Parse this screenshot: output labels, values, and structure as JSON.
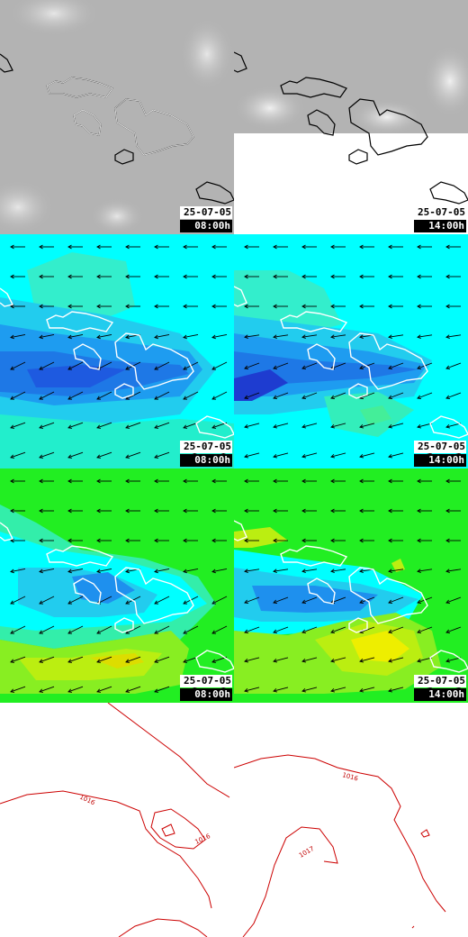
{
  "panels": [
    {
      "row": "cloud",
      "date": "25-07-05",
      "time": "08:00h"
    },
    {
      "row": "cloud",
      "date": "25-07-05",
      "time": "14:00h"
    },
    {
      "row": "wind",
      "date": "25-07-05",
      "time": "08:00h"
    },
    {
      "row": "wind",
      "date": "25-07-05",
      "time": "14:00h"
    },
    {
      "row": "gust",
      "date": "25-07-05",
      "time": "08:00h"
    },
    {
      "row": "gust",
      "date": "25-07-05",
      "time": "14:00h"
    }
  ],
  "pressure": {
    "left_labels": [
      "1016",
      "1016"
    ],
    "right_labels": [
      "1016",
      "1017"
    ],
    "line_color": "#cc0000"
  },
  "colors": {
    "cloud_gray": "#b3b3b3",
    "clear_white": "#ffffff",
    "wind_cyan": "#00ffff",
    "wind_blue": "#1e90ff",
    "gust_green": "#22ee22",
    "gust_yellow": "#eeee00",
    "coast_white": "#ffffff",
    "coast_black": "#000000"
  }
}
